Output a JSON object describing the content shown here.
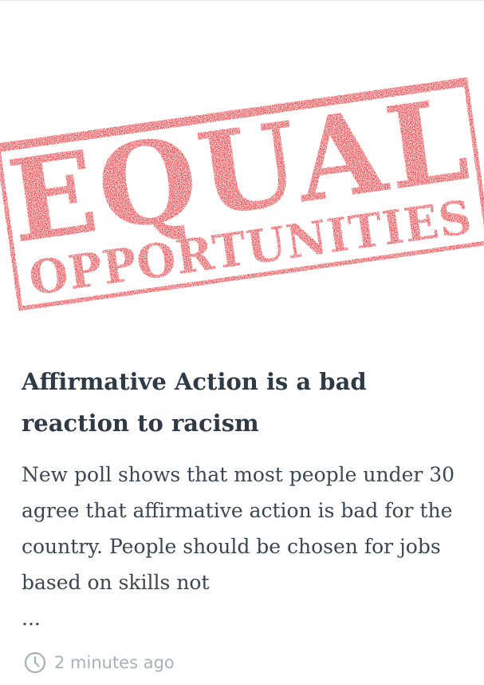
{
  "hero": {
    "image_alt": "EQUAL OPPORTUNITIES stamp",
    "stamp_line1": "EQUAL",
    "stamp_line2": "OPPORTUNITIES",
    "stamp_color": "#e3141b"
  },
  "article": {
    "title": "Affirmative Action is a bad reaction to racism",
    "excerpt": "New poll shows that most people under 30 agree that affirmative action is bad for the country. People should be chosen for jobs based on skills not",
    "ellipsis": "...",
    "timestamp": "2 minutes ago",
    "timestamp_icon": "clock-icon",
    "title_color": "#2e3a45",
    "meta_color": "#a8b0b8"
  }
}
